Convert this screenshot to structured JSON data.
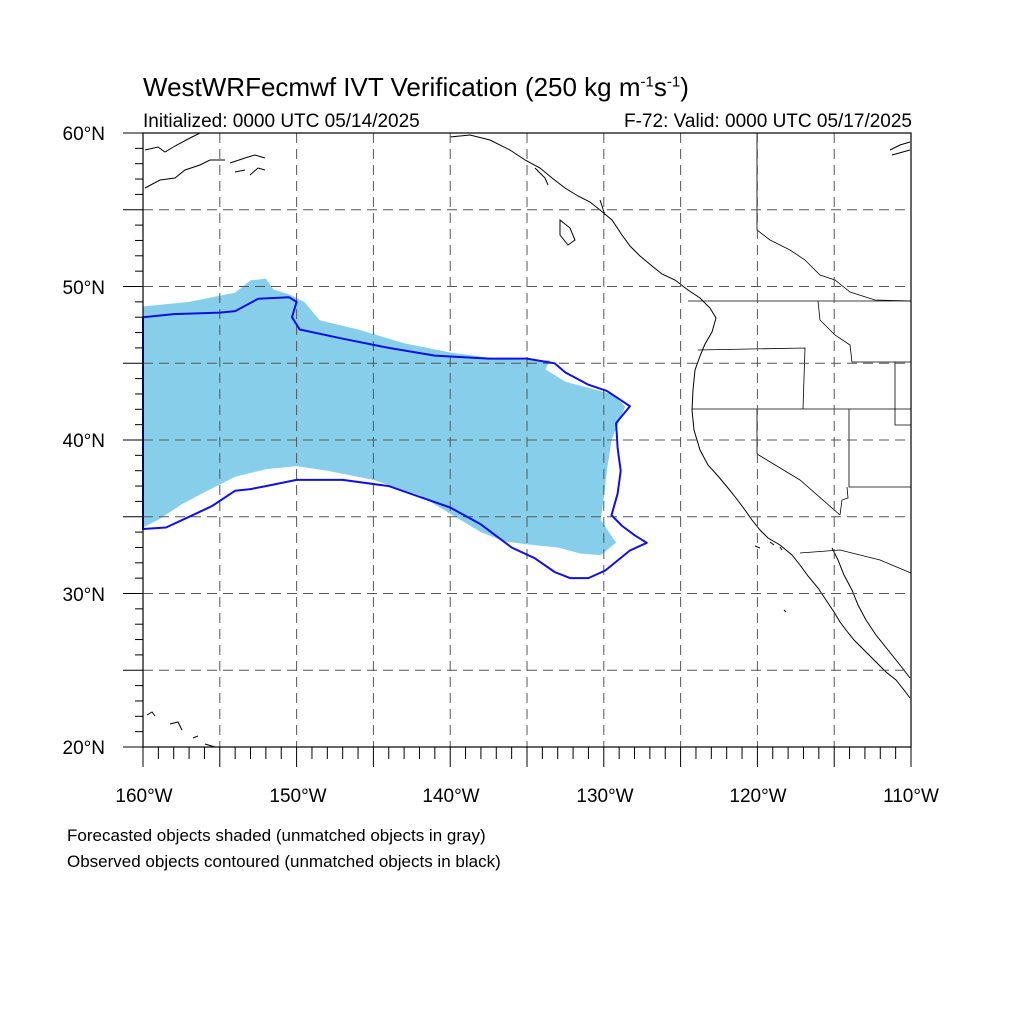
{
  "title": {
    "model": "WestWRFecmwf IVT Verification",
    "threshold": "(250 kg m",
    "unit_exp1": "-1",
    "unit_mid": "s",
    "unit_exp2": "-1",
    "unit_close": ")"
  },
  "initialized": "Initialized: 0000 UTC 05/14/2025",
  "valid": "F-72: Valid: 0000 UTC 05/17/2025",
  "lat_labels": [
    "60°N",
    "50°N",
    "40°N",
    "30°N",
    "20°N"
  ],
  "lon_labels": [
    "160°W",
    "150°W",
    "140°W",
    "130°W",
    "120°W",
    "110°W"
  ],
  "legend": {
    "line1": "Forecasted objects shaded (unmatched objects in gray)",
    "line2": "Observed objects contoured (unmatched objects in black)"
  },
  "colors": {
    "forecast_fill": "#87CEEB",
    "observed_contour": "#1010E6",
    "grid": "#555555",
    "coastline": "#000000"
  },
  "chart_data": {
    "type": "map",
    "extent": {
      "lon": [
        -160,
        -110
      ],
      "lat": [
        20,
        60
      ]
    },
    "grid_dashed_every_deg": 5,
    "forecast_object": {
      "matched": true,
      "polygon": [
        [
          -160,
          48.7
        ],
        [
          -157,
          49
        ],
        [
          -154,
          49.6
        ],
        [
          -153,
          50.4
        ],
        [
          -152,
          50.5
        ],
        [
          -151.5,
          49.8
        ],
        [
          -150.5,
          49.5
        ],
        [
          -149.5,
          49
        ],
        [
          -148.5,
          47.8
        ],
        [
          -146,
          47.2
        ],
        [
          -143,
          46.3
        ],
        [
          -140,
          45.7
        ],
        [
          -137,
          45.3
        ],
        [
          -134.5,
          45.2
        ],
        [
          -133.5,
          45.2
        ],
        [
          -133.8,
          44.6
        ],
        [
          -132.5,
          43.8
        ],
        [
          -131,
          43.4
        ],
        [
          -129.5,
          43
        ],
        [
          -128.6,
          42.2
        ],
        [
          -129.5,
          40
        ],
        [
          -129.8,
          38
        ],
        [
          -130,
          36.2
        ],
        [
          -130.2,
          34.8
        ],
        [
          -129.2,
          33.3
        ],
        [
          -130.2,
          32.5
        ],
        [
          -131.5,
          32.6
        ],
        [
          -133,
          33
        ],
        [
          -135,
          33.2
        ],
        [
          -136.5,
          33.4
        ],
        [
          -138,
          34
        ],
        [
          -140,
          35.2
        ],
        [
          -142,
          36.4
        ],
        [
          -145,
          37.4
        ],
        [
          -148,
          38
        ],
        [
          -150,
          38.3
        ],
        [
          -152,
          38.1
        ],
        [
          -154,
          37.6
        ],
        [
          -156,
          36.6
        ],
        [
          -157.5,
          35.8
        ],
        [
          -159,
          34.8
        ],
        [
          -160,
          34.3
        ]
      ]
    },
    "observed_object": {
      "matched": true,
      "polygon": [
        [
          -160,
          48
        ],
        [
          -158,
          48.2
        ],
        [
          -155,
          48.3
        ],
        [
          -154,
          48.4
        ],
        [
          -152.5,
          49.2
        ],
        [
          -150.5,
          49.3
        ],
        [
          -150,
          49
        ],
        [
          -150.3,
          48
        ],
        [
          -149.8,
          47.2
        ],
        [
          -147,
          46.6
        ],
        [
          -144,
          46
        ],
        [
          -141,
          45.5
        ],
        [
          -137.5,
          45.3
        ],
        [
          -135,
          45.3
        ],
        [
          -133.2,
          45
        ],
        [
          -132.5,
          44.4
        ],
        [
          -131,
          43.6
        ],
        [
          -129.8,
          43.2
        ],
        [
          -128.3,
          42.2
        ],
        [
          -129.2,
          41.1
        ],
        [
          -129.1,
          39.5
        ],
        [
          -128.9,
          38
        ],
        [
          -129.1,
          36.5
        ],
        [
          -129.5,
          35.1
        ],
        [
          -128.8,
          34.4
        ],
        [
          -128,
          33.8
        ],
        [
          -127.2,
          33.3
        ],
        [
          -128.3,
          32.8
        ],
        [
          -129.9,
          31.5
        ],
        [
          -131,
          31
        ],
        [
          -132.2,
          31
        ],
        [
          -133.2,
          31.4
        ],
        [
          -134.5,
          32.3
        ],
        [
          -136,
          33
        ],
        [
          -138,
          34.5
        ],
        [
          -140,
          35.6
        ],
        [
          -142,
          36.3
        ],
        [
          -144,
          37
        ],
        [
          -147,
          37.4
        ],
        [
          -150,
          37.4
        ],
        [
          -152,
          37
        ],
        [
          -153,
          36.8
        ],
        [
          -154,
          36.7
        ],
        [
          -155.5,
          35.7
        ],
        [
          -157,
          35
        ],
        [
          -158.5,
          34.3
        ],
        [
          -160,
          34.2
        ]
      ]
    }
  }
}
